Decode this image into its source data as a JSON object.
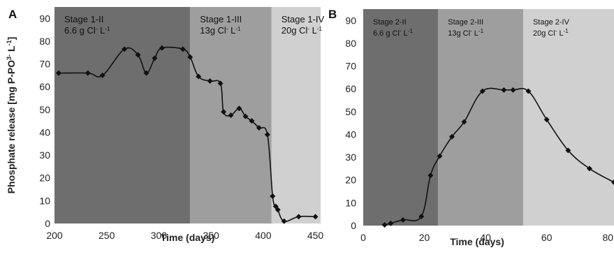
{
  "chart_data": [
    {
      "panel_label": "A",
      "type": "line",
      "xlabel": "Time (days)",
      "ylabel": "Phosphate release [mg P-PO",
      "ylabel_sup": "3-",
      "ylabel_end": " L",
      "ylabel_sup2": "-1",
      "ylabel_close": "]",
      "xlim": [
        200,
        455
      ],
      "ylim": [
        0,
        95
      ],
      "xticks": [
        200,
        250,
        300,
        350,
        400,
        450
      ],
      "yticks": [
        0,
        10,
        20,
        30,
        40,
        50,
        60,
        70,
        80,
        90
      ],
      "stages": [
        {
          "name": "Stage 1-II",
          "conc": "6.6 g Cl",
          "sup": "-",
          "unit": " L",
          "unit_sup": "-1",
          "x0": 200,
          "x1": 330,
          "color": "#6e6e6e"
        },
        {
          "name": "Stage 1-III",
          "conc": "13g Cl",
          "sup": "-",
          "unit": " L",
          "unit_sup": "-1",
          "x0": 330,
          "x1": 408,
          "color": "#9e9e9e"
        },
        {
          "name": "Stage 1-IV",
          "conc": "20g Cl",
          "sup": "-",
          "unit": " L",
          "unit_sup": "-1",
          "x0": 408,
          "x1": 455,
          "color": "#d0d0d0"
        }
      ],
      "points": [
        [
          204,
          66
        ],
        [
          232,
          66
        ],
        [
          246,
          65
        ],
        [
          267,
          76.5
        ],
        [
          280,
          74
        ],
        [
          288,
          66
        ],
        [
          296,
          72.5
        ],
        [
          303,
          77
        ],
        [
          323,
          76.5
        ],
        [
          330,
          73
        ],
        [
          338,
          64.5
        ],
        [
          349,
          62.5
        ],
        [
          359,
          61.5
        ],
        [
          362,
          49
        ],
        [
          369,
          47.5
        ],
        [
          377,
          50.5
        ],
        [
          383,
          47
        ],
        [
          389,
          45
        ],
        [
          396,
          42
        ],
        [
          404,
          39
        ],
        [
          409,
          12
        ],
        [
          412,
          7.5
        ],
        [
          414,
          6
        ],
        [
          420,
          1
        ],
        [
          434,
          3
        ],
        [
          450,
          3
        ]
      ]
    },
    {
      "panel_label": "B",
      "type": "line",
      "xlabel": "Time (days)",
      "xlim": [
        0,
        82
      ],
      "ylim": [
        0,
        95
      ],
      "xticks": [
        0,
        20,
        40,
        60,
        80
      ],
      "yticks": [
        0,
        10,
        20,
        30,
        40,
        50,
        60,
        70,
        80,
        90
      ],
      "stages": [
        {
          "name": "Stage 2-II",
          "conc": "6.6 g Cl",
          "sup": "-",
          "unit": " L",
          "unit_sup": "-1",
          "x0": 0,
          "x1": 24.5,
          "color": "#6e6e6e"
        },
        {
          "name": "Stage 2-III",
          "conc": "13g Cl",
          "sup": "-",
          "unit": " L",
          "unit_sup": "-1",
          "x0": 24.5,
          "x1": 52.3,
          "color": "#9e9e9e"
        },
        {
          "name": "Stage 2-IV",
          "conc": "20g Cl",
          "sup": "-",
          "unit": " L",
          "unit_sup": "-1",
          "x0": 52.3,
          "x1": 82,
          "color": "#d0d0d0"
        }
      ],
      "points": [
        [
          7,
          0.3
        ],
        [
          9,
          1
        ],
        [
          13,
          2.5
        ],
        [
          19,
          4
        ],
        [
          22,
          22
        ],
        [
          25,
          30.5
        ],
        [
          29,
          39
        ],
        [
          33,
          45.5
        ],
        [
          39,
          59
        ],
        [
          46,
          59.5
        ],
        [
          49,
          59.5
        ],
        [
          54,
          59
        ],
        [
          60,
          46.5
        ],
        [
          67,
          33
        ],
        [
          74,
          25
        ],
        [
          82,
          19
        ]
      ]
    }
  ]
}
